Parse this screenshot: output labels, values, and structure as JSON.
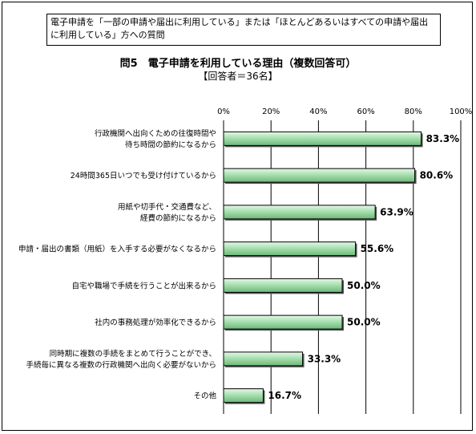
{
  "note": "電子申請を「一部の申請や届出に利用している」または「ほとんどあるいはすべての申請や届出に利用している」方への質問",
  "chart_data": {
    "type": "bar",
    "orientation": "horizontal",
    "title": "問5　電子申請を利用している理由（複数回答可）",
    "subtitle": "【回答者＝36名】",
    "categories": [
      [
        "行政機関へ出向くための往復時間や",
        "待ち時間の節約になるから"
      ],
      [
        "24時間365日いつでも受け付けているから"
      ],
      [
        "用紙や切手代・交通費など、",
        "経費の節約になるから"
      ],
      [
        "申請・届出の書類（用紙）を入手する必要がなくなるから"
      ],
      [
        "自宅や職場で手続を行うことが出来るから"
      ],
      [
        "社内の事務処理が効率化できるから"
      ],
      [
        "同時期に複数の手続をまとめて行うことができ、",
        "手続毎に異なる複数の行政機関へ出向く必要がないから"
      ],
      [
        "その他"
      ]
    ],
    "values": [
      83.3,
      80.6,
      63.9,
      55.6,
      50.0,
      50.0,
      33.3,
      16.7
    ],
    "value_labels": [
      "83.3%",
      "80.6%",
      "63.9%",
      "55.6%",
      "50.0%",
      "50.0%",
      "33.3%",
      "16.7%"
    ],
    "xlim": [
      0,
      100
    ],
    "xticks": [
      0,
      20,
      40,
      60,
      80,
      100
    ],
    "xtick_labels": [
      "0%",
      "20%",
      "40%",
      "60%",
      "80%",
      "100%"
    ],
    "grid": "vertical",
    "bar_color": "#a8e0b0",
    "bar_edge_color": "#000000"
  }
}
